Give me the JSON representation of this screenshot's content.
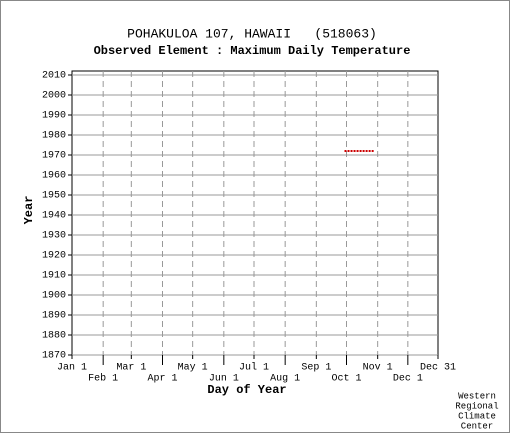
{
  "chart_data": {
    "type": "scatter",
    "title": "POHAKULOA 107, HAWAII   (518063)",
    "subtitle": "Observed Element : Maximum Daily Temperature",
    "x_label": "Day of Year",
    "y_label": "Year",
    "credit": [
      "Western",
      "Regional",
      "Climate",
      "Center"
    ],
    "xlim": [
      1,
      365
    ],
    "ylim": [
      1870,
      2012
    ],
    "xticks": [
      {
        "value": 1,
        "label": "Jan 1"
      },
      {
        "value": 32,
        "label": "Feb 1"
      },
      {
        "value": 60,
        "label": "Mar 1"
      },
      {
        "value": 91,
        "label": "Apr 1"
      },
      {
        "value": 121,
        "label": "May 1"
      },
      {
        "value": 152,
        "label": "Jun 1"
      },
      {
        "value": 182,
        "label": "Jul 1"
      },
      {
        "value": 213,
        "label": "Aug 1"
      },
      {
        "value": 244,
        "label": "Sep 1"
      },
      {
        "value": 274,
        "label": "Oct 1"
      },
      {
        "value": 305,
        "label": "Nov 1"
      },
      {
        "value": 335,
        "label": "Dec 1"
      },
      {
        "value": 365,
        "label": "Dec 31"
      }
    ],
    "yticks": [
      1870,
      1880,
      1890,
      1900,
      1910,
      1920,
      1930,
      1940,
      1950,
      1960,
      1970,
      1980,
      1990,
      2000,
      2010
    ],
    "grid": true,
    "series": [
      {
        "color": "#cc0000",
        "x": [
          273,
          276,
          279,
          282,
          285,
          288,
          291,
          294,
          297,
          300
        ],
        "values": [
          1972,
          1972,
          1972,
          1972,
          1972,
          1972,
          1972,
          1972,
          1972,
          1972
        ]
      }
    ]
  }
}
